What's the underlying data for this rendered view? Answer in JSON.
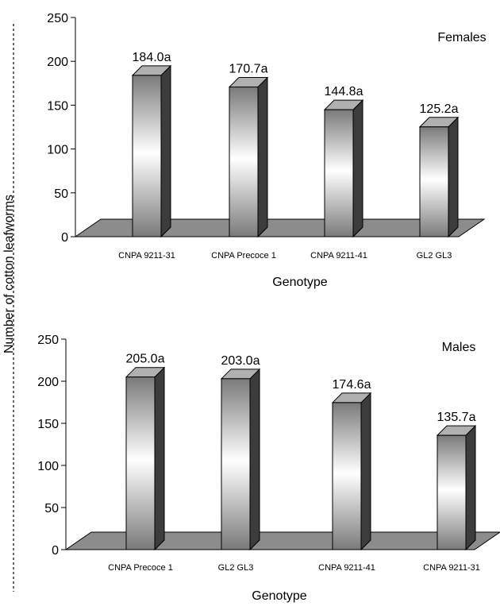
{
  "figure": {
    "shared_ylabel": "Number of cotton leafworms"
  },
  "chart_data": [
    {
      "type": "bar",
      "panel_label": "Females",
      "categories": [
        "CNPA 9211-31",
        "CNPA Precoce 1",
        "CNPA 9211-41",
        "GL2 GL3"
      ],
      "values": [
        184.0,
        170.7,
        144.8,
        125.2
      ],
      "data_labels": [
        "184.0a",
        "170.7a",
        "144.8a",
        "125.2a"
      ],
      "yticks": [
        0,
        50,
        100,
        150,
        200,
        250
      ],
      "ylim": [
        0,
        250
      ],
      "xlabel": "Genotype",
      "ylabel": "Number of cotton leafworms",
      "grid": false,
      "style": "3d"
    },
    {
      "type": "bar",
      "panel_label": "Males",
      "categories": [
        "CNPA Precoce 1",
        "GL2 GL3",
        "CNPA 9211-41",
        "CNPA 9211-31"
      ],
      "values": [
        205.0,
        203.0,
        174.6,
        135.7
      ],
      "data_labels": [
        "205.0a",
        "203.0a",
        "174.6a",
        "135.7a"
      ],
      "yticks": [
        0,
        50,
        100,
        150,
        200,
        250
      ],
      "ylim": [
        0,
        250
      ],
      "xlabel": "Genotype",
      "ylabel": "Number of cotton leafworms",
      "grid": false,
      "style": "3d"
    }
  ]
}
